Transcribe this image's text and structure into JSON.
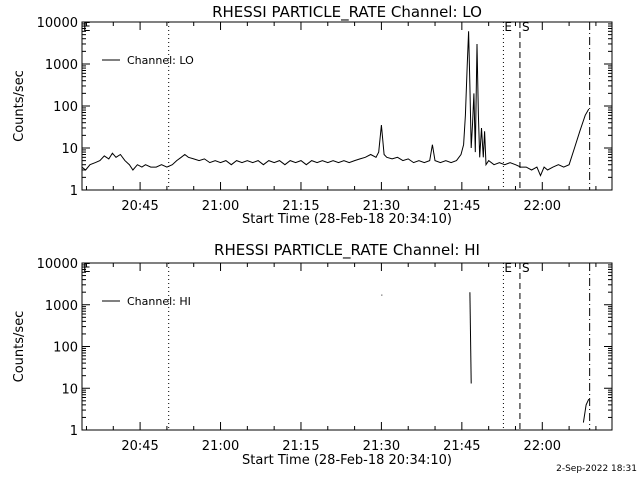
{
  "chart_data": [
    {
      "type": "line",
      "title": "RHESSI PARTICLE_RATE Channel: LO",
      "xlabel": "Start Time (28-Feb-18 20:34:10)",
      "ylabel": "Counts/sec",
      "yscale": "log",
      "ylim": [
        1,
        10000
      ],
      "xlim": [
        "20:34:10",
        "22:13:00"
      ],
      "x_ticks": [
        "20:45",
        "21:00",
        "21:15",
        "21:30",
        "21:45",
        "22:00"
      ],
      "y_ticks": [
        "1",
        "10",
        "100",
        "1000",
        "10000"
      ],
      "legend": {
        "position": "top-left",
        "entries": [
          "Channel: LO"
        ]
      },
      "edge_labels": {
        "start": "E",
        "start2": "E",
        "stop": "S"
      },
      "markers": [
        {
          "style": "dotted",
          "time": "20:50:20"
        },
        {
          "style": "dotted",
          "time": "21:52:45"
        },
        {
          "style": "dashed",
          "time": "21:55:50"
        },
        {
          "style": "dashdot",
          "time": "22:08:50"
        }
      ],
      "series": [
        {
          "name": "Channel: LO",
          "points": [
            [
              "20:34:10",
              3.5
            ],
            [
              "20:34:50",
              3.0
            ],
            [
              "20:35:40",
              4.0
            ],
            [
              "20:36:40",
              4.5
            ],
            [
              "20:37:30",
              5.0
            ],
            [
              "20:38:20",
              6.5
            ],
            [
              "20:39:10",
              5.5
            ],
            [
              "20:39:50",
              7.5
            ],
            [
              "20:40:30",
              6.0
            ],
            [
              "20:41:20",
              7.0
            ],
            [
              "20:42:10",
              5.0
            ],
            [
              "20:43:00",
              4.0
            ],
            [
              "20:43:40",
              3.0
            ],
            [
              "20:44:30",
              4.0
            ],
            [
              "20:45:20",
              3.5
            ],
            [
              "20:46:00",
              4.0
            ],
            [
              "20:47:00",
              3.5
            ],
            [
              "20:48:00",
              3.5
            ],
            [
              "20:49:00",
              4.0
            ],
            [
              "20:50:00",
              3.5
            ],
            [
              "20:51:00",
              4.0
            ],
            [
              "20:51:50",
              5.0
            ],
            [
              "20:52:40",
              6.0
            ],
            [
              "20:53:20",
              7.0
            ],
            [
              "20:54:00",
              6.0
            ],
            [
              "20:55:00",
              5.5
            ],
            [
              "20:56:00",
              5.0
            ],
            [
              "20:57:00",
              5.5
            ],
            [
              "20:58:00",
              4.5
            ],
            [
              "20:59:00",
              5.0
            ],
            [
              "21:00:00",
              4.5
            ],
            [
              "21:01:00",
              5.0
            ],
            [
              "21:02:00",
              4.0
            ],
            [
              "21:03:00",
              5.0
            ],
            [
              "21:04:00",
              4.5
            ],
            [
              "21:05:00",
              5.0
            ],
            [
              "21:06:00",
              4.5
            ],
            [
              "21:07:00",
              5.0
            ],
            [
              "21:08:00",
              4.0
            ],
            [
              "21:09:00",
              5.0
            ],
            [
              "21:10:00",
              4.5
            ],
            [
              "21:11:00",
              5.0
            ],
            [
              "21:12:00",
              4.0
            ],
            [
              "21:13:00",
              5.0
            ],
            [
              "21:14:00",
              4.5
            ],
            [
              "21:15:00",
              5.0
            ],
            [
              "21:16:00",
              4.0
            ],
            [
              "21:17:00",
              5.0
            ],
            [
              "21:18:00",
              4.5
            ],
            [
              "21:19:00",
              5.0
            ],
            [
              "21:20:00",
              4.5
            ],
            [
              "21:21:00",
              5.0
            ],
            [
              "21:22:00",
              4.5
            ],
            [
              "21:23:00",
              5.0
            ],
            [
              "21:24:00",
              4.5
            ],
            [
              "21:25:00",
              5.0
            ],
            [
              "21:26:00",
              5.5
            ],
            [
              "21:27:00",
              6.0
            ],
            [
              "21:28:00",
              7.0
            ],
            [
              "21:29:00",
              6.0
            ],
            [
              "21:29:30",
              8.0
            ],
            [
              "21:30:00",
              35.0
            ],
            [
              "21:30:30",
              7.0
            ],
            [
              "21:31:00",
              6.0
            ],
            [
              "21:32:00",
              5.5
            ],
            [
              "21:33:00",
              6.0
            ],
            [
              "21:34:00",
              5.0
            ],
            [
              "21:35:00",
              5.5
            ],
            [
              "21:36:00",
              4.5
            ],
            [
              "21:37:00",
              5.0
            ],
            [
              "21:38:00",
              4.5
            ],
            [
              "21:39:00",
              5.0
            ],
            [
              "21:39:30",
              12.0
            ],
            [
              "21:40:00",
              5.0
            ],
            [
              "21:41:00",
              4.5
            ],
            [
              "21:42:00",
              5.0
            ],
            [
              "21:43:00",
              4.5
            ],
            [
              "21:44:00",
              5.0
            ],
            [
              "21:44:50",
              7.0
            ],
            [
              "21:45:20",
              12.0
            ],
            [
              "21:45:40",
              60.0
            ],
            [
              "21:46:00",
              900.0
            ],
            [
              "21:46:15",
              6000.0
            ],
            [
              "21:46:30",
              300.0
            ],
            [
              "21:46:45",
              10.0
            ],
            [
              "21:47:00",
              40.0
            ],
            [
              "21:47:15",
              200.0
            ],
            [
              "21:47:30",
              8.0
            ],
            [
              "21:47:50",
              3000.0
            ],
            [
              "21:48:05",
              60.0
            ],
            [
              "21:48:20",
              6.0
            ],
            [
              "21:48:40",
              30.0
            ],
            [
              "21:49:00",
              6.0
            ],
            [
              "21:49:15",
              25.0
            ],
            [
              "21:49:30",
              4.0
            ],
            [
              "21:50:00",
              5.0
            ],
            [
              "21:51:00",
              4.0
            ],
            [
              "21:52:00",
              4.5
            ],
            [
              "21:53:00",
              4.0
            ],
            [
              "21:54:00",
              4.5
            ],
            [
              "21:55:00",
              4.0
            ],
            [
              "21:56:00",
              3.5
            ],
            [
              "21:57:00",
              3.5
            ],
            [
              "21:58:00",
              3.0
            ],
            [
              "21:59:00",
              3.5
            ],
            [
              "21:59:40",
              2.2
            ],
            [
              "22:00:20",
              3.5
            ],
            [
              "22:01:00",
              3.0
            ],
            [
              "22:02:00",
              3.5
            ],
            [
              "22:03:00",
              4.0
            ],
            [
              "22:04:00",
              3.5
            ],
            [
              "22:05:00",
              4.0
            ],
            [
              "22:06:00",
              10.0
            ],
            [
              "22:07:00",
              25.0
            ],
            [
              "22:08:00",
              60.0
            ],
            [
              "22:08:40",
              85.0
            ]
          ]
        }
      ]
    },
    {
      "type": "line",
      "title": "RHESSI PARTICLE_RATE Channel: HI",
      "xlabel": "Start Time (28-Feb-18 20:34:10)",
      "ylabel": "Counts/sec",
      "yscale": "log",
      "ylim": [
        1,
        10000
      ],
      "xlim": [
        "20:34:10",
        "22:13:00"
      ],
      "x_ticks": [
        "20:45",
        "21:00",
        "21:15",
        "21:30",
        "21:45",
        "22:00"
      ],
      "y_ticks": [
        "1",
        "10",
        "100",
        "1000",
        "10000"
      ],
      "legend": {
        "position": "top-left",
        "entries": [
          "Channel: HI"
        ]
      },
      "edge_labels": {
        "start": "E",
        "start2": "E",
        "stop": "S"
      },
      "markers": [
        {
          "style": "dotted",
          "time": "20:50:20"
        },
        {
          "style": "dotted",
          "time": "21:52:45"
        },
        {
          "style": "dashed",
          "time": "21:55:50"
        },
        {
          "style": "dashdot",
          "time": "22:08:50"
        }
      ],
      "series": [
        {
          "name": "Channel: HI",
          "segments": [
            [
              [
                "21:30:00",
                1700
              ],
              [
                "21:30:10",
                1700
              ]
            ],
            [
              [
                "21:46:30",
                2000
              ],
              [
                "21:46:45",
                13
              ]
            ],
            [
              [
                "22:07:40",
                1.5
              ],
              [
                "22:08:10",
                4.0
              ],
              [
                "22:08:40",
                5.5
              ]
            ]
          ]
        }
      ]
    }
  ],
  "footer": {
    "timestamp": "2-Sep-2022 18:31"
  }
}
